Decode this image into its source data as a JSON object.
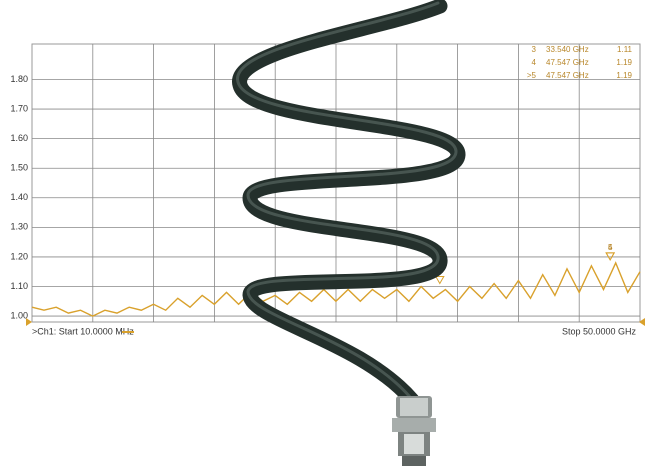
{
  "chart_data": {
    "type": "line",
    "start_label": ">Ch1:  Start  10.0000 MHz",
    "stop_label": "Stop  50.0000 GHz",
    "color": "#d9a12c",
    "grid": true,
    "xlim": [
      0.01,
      50
    ],
    "ylim": [
      0.98,
      1.92
    ],
    "yticks": [
      {
        "value": 1.0,
        "label": "1.00"
      },
      {
        "value": 1.1,
        "label": "1.10"
      },
      {
        "value": 1.2,
        "label": "1.20"
      },
      {
        "value": 1.3,
        "label": "1.30"
      },
      {
        "value": 1.4,
        "label": "1.40"
      },
      {
        "value": 1.5,
        "label": "1.50"
      },
      {
        "value": 1.6,
        "label": "1.60"
      },
      {
        "value": 1.7,
        "label": "1.70"
      },
      {
        "value": 1.8,
        "label": "1.80"
      }
    ],
    "x": [
      0.01,
      1,
      2,
      3,
      4,
      5,
      6,
      7,
      8,
      9,
      10,
      11,
      12,
      13,
      14,
      15,
      16,
      17,
      18,
      19,
      20,
      21,
      22,
      23,
      24,
      25,
      26,
      27,
      28,
      29,
      30,
      31,
      32,
      33,
      34,
      35,
      36,
      37,
      38,
      39,
      40,
      41,
      42,
      43,
      44,
      45,
      46,
      47,
      48,
      49,
      50
    ],
    "values": [
      1.03,
      1.02,
      1.03,
      1.01,
      1.02,
      1.0,
      1.02,
      1.01,
      1.03,
      1.02,
      1.04,
      1.02,
      1.06,
      1.03,
      1.07,
      1.04,
      1.08,
      1.04,
      1.08,
      1.05,
      1.07,
      1.04,
      1.08,
      1.05,
      1.09,
      1.05,
      1.09,
      1.05,
      1.09,
      1.06,
      1.09,
      1.05,
      1.1,
      1.06,
      1.09,
      1.05,
      1.1,
      1.06,
      1.11,
      1.06,
      1.12,
      1.06,
      1.14,
      1.07,
      1.16,
      1.08,
      1.17,
      1.09,
      1.18,
      1.08,
      1.15
    ],
    "markers": [
      {
        "id": "3",
        "tag": "3",
        "freq": {
          "value": 33.54,
          "label": "33.540 GHz"
        },
        "value": 1.11
      },
      {
        "id": "4",
        "tag": "4",
        "freq": {
          "value": 47.547,
          "label": "47.547 GHz"
        },
        "value": 1.19
      },
      {
        "id": ">5",
        "tag": "5",
        "freq": {
          "value": 47.547,
          "label": "47.547 GHz"
        },
        "value": 1.19
      }
    ]
  }
}
